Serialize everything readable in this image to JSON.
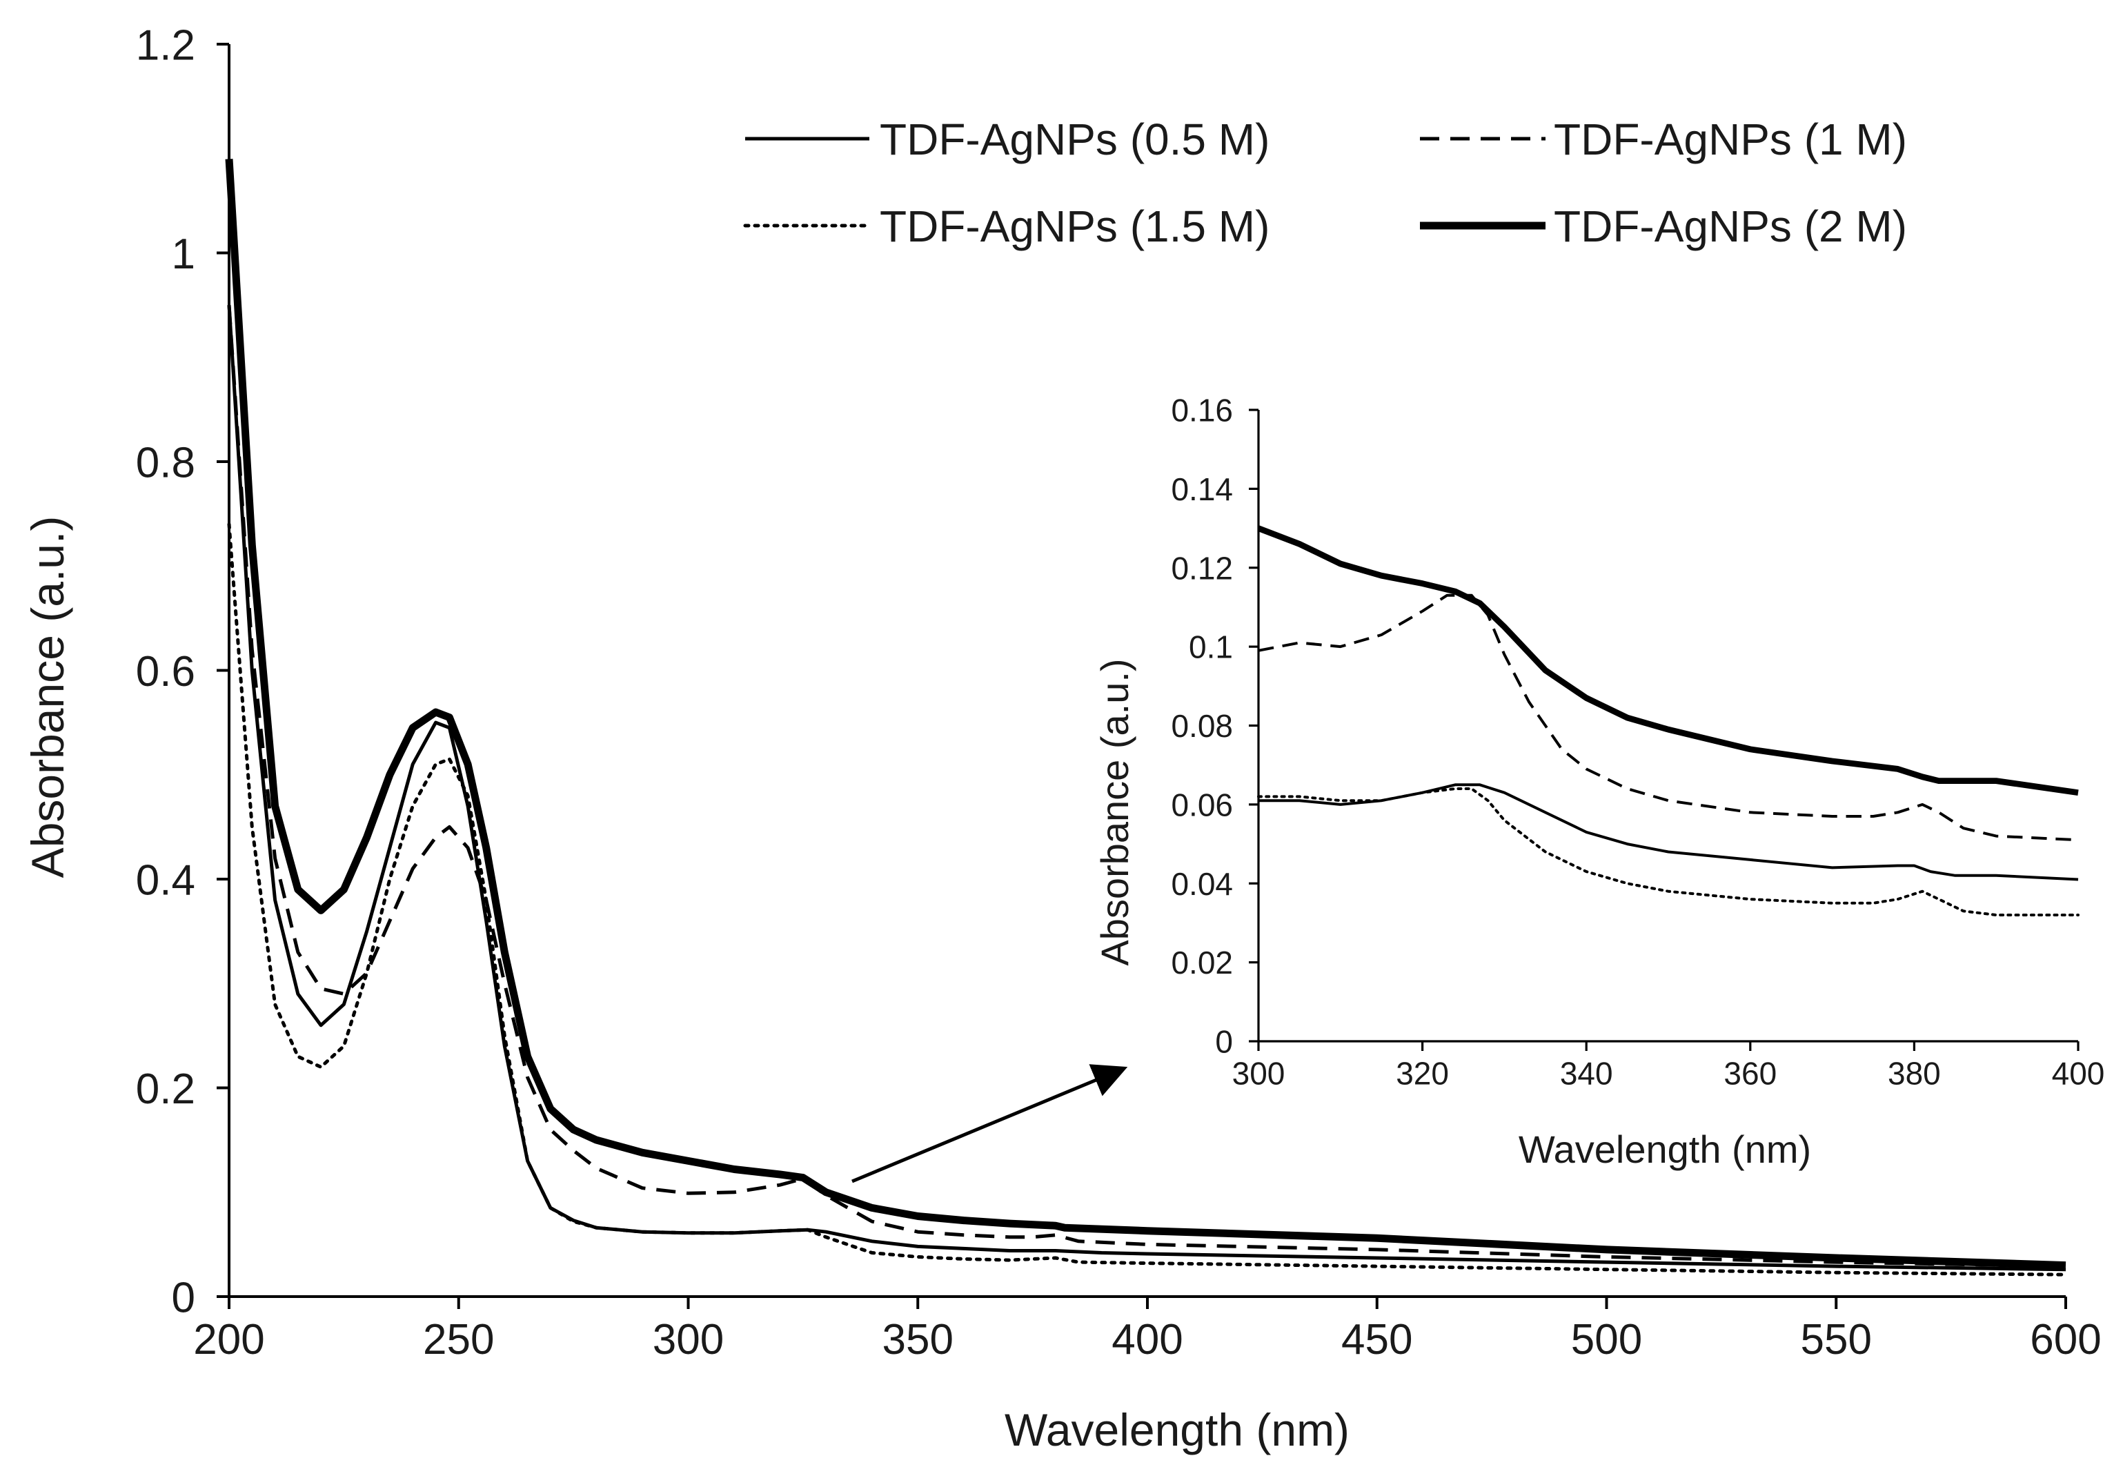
{
  "chart_data": [
    {
      "type": "line",
      "xlabel": "Wavelength (nm)",
      "ylabel": "Absorbance (a.u.)",
      "xlim": [
        200,
        600
      ],
      "ylim": [
        0,
        1.2
      ],
      "xticks": [
        200,
        250,
        300,
        350,
        400,
        450,
        500,
        550,
        600
      ],
      "yticks": [
        0,
        0.2,
        0.4,
        0.6,
        0.8,
        1,
        1.2
      ],
      "ytick_labels": [
        "0",
        "0.2",
        "0.4",
        "0.6",
        "0.8",
        "1",
        "1.2"
      ],
      "grid": false,
      "legend_position": "top-right",
      "series": [
        {
          "name": "TDF-AgNPs (0.5 M)",
          "style": "solid",
          "x": [
            200,
            205,
            210,
            215,
            220,
            225,
            230,
            235,
            240,
            245,
            248,
            252,
            256,
            260,
            265,
            270,
            275,
            280,
            290,
            300,
            310,
            320,
            326,
            330,
            340,
            350,
            360,
            370,
            380,
            390,
            400,
            450,
            500,
            550,
            600
          ],
          "y": [
            0.95,
            0.6,
            0.38,
            0.29,
            0.26,
            0.28,
            0.35,
            0.43,
            0.51,
            0.55,
            0.545,
            0.47,
            0.36,
            0.24,
            0.13,
            0.085,
            0.073,
            0.066,
            0.062,
            0.061,
            0.061,
            0.063,
            0.064,
            0.062,
            0.053,
            0.048,
            0.046,
            0.044,
            0.044,
            0.042,
            0.041,
            0.037,
            0.033,
            0.029,
            0.026
          ]
        },
        {
          "name": "TDF-AgNPs (1 M)",
          "style": "dashed",
          "x": [
            200,
            205,
            210,
            215,
            220,
            225,
            230,
            235,
            240,
            245,
            248,
            252,
            256,
            260,
            265,
            270,
            275,
            280,
            290,
            300,
            310,
            320,
            325,
            330,
            340,
            350,
            360,
            370,
            375,
            380,
            385,
            400,
            450,
            500,
            550,
            600
          ],
          "y": [
            0.95,
            0.62,
            0.42,
            0.33,
            0.295,
            0.29,
            0.31,
            0.36,
            0.41,
            0.44,
            0.45,
            0.43,
            0.38,
            0.3,
            0.21,
            0.16,
            0.14,
            0.123,
            0.104,
            0.099,
            0.1,
            0.107,
            0.113,
            0.097,
            0.072,
            0.062,
            0.059,
            0.057,
            0.057,
            0.059,
            0.053,
            0.05,
            0.045,
            0.038,
            0.033,
            0.029
          ]
        },
        {
          "name": "TDF-AgNPs (1.5 M)",
          "style": "dotted",
          "x": [
            200,
            205,
            210,
            215,
            220,
            225,
            230,
            235,
            240,
            245,
            248,
            252,
            256,
            260,
            265,
            270,
            275,
            280,
            290,
            300,
            310,
            320,
            326,
            330,
            340,
            350,
            360,
            370,
            380,
            385,
            400,
            450,
            500,
            550,
            600
          ],
          "y": [
            0.74,
            0.45,
            0.28,
            0.23,
            0.22,
            0.24,
            0.31,
            0.4,
            0.47,
            0.51,
            0.515,
            0.48,
            0.38,
            0.25,
            0.13,
            0.085,
            0.072,
            0.066,
            0.062,
            0.061,
            0.061,
            0.063,
            0.064,
            0.057,
            0.042,
            0.038,
            0.036,
            0.035,
            0.037,
            0.033,
            0.032,
            0.029,
            0.026,
            0.023,
            0.021
          ]
        },
        {
          "name": "TDF-AgNPs (2 M)",
          "style": "thick",
          "x": [
            200,
            205,
            210,
            215,
            220,
            225,
            230,
            235,
            240,
            245,
            248,
            252,
            256,
            260,
            265,
            270,
            275,
            280,
            290,
            300,
            310,
            320,
            325,
            330,
            340,
            350,
            360,
            370,
            380,
            382,
            400,
            450,
            500,
            550,
            600
          ],
          "y": [
            1.09,
            0.72,
            0.47,
            0.39,
            0.37,
            0.39,
            0.44,
            0.5,
            0.545,
            0.56,
            0.555,
            0.51,
            0.43,
            0.33,
            0.23,
            0.18,
            0.16,
            0.15,
            0.138,
            0.13,
            0.122,
            0.117,
            0.114,
            0.1,
            0.085,
            0.077,
            0.073,
            0.07,
            0.068,
            0.066,
            0.063,
            0.056,
            0.045,
            0.037,
            0.03
          ]
        }
      ]
    },
    {
      "type": "line",
      "role": "inset",
      "xlabel": "Wavelength (nm)",
      "ylabel": "Absorbance (a.u.)",
      "xlim": [
        300,
        400
      ],
      "ylim": [
        0,
        0.16
      ],
      "xticks": [
        300,
        320,
        340,
        360,
        380,
        400
      ],
      "yticks": [
        0,
        0.02,
        0.04,
        0.06,
        0.08,
        0.1,
        0.12,
        0.14,
        0.16
      ],
      "ytick_labels": [
        "0",
        "0.02",
        "0.04",
        "0.06",
        "0.08",
        "0.1",
        "0.12",
        "0.14",
        "0.16"
      ],
      "grid": false,
      "series": [
        {
          "name": "TDF-AgNPs (0.5 M)",
          "style": "solid",
          "x": [
            300,
            305,
            310,
            315,
            320,
            324,
            327,
            330,
            335,
            340,
            345,
            350,
            360,
            370,
            378,
            380,
            382,
            385,
            390,
            400
          ],
          "y": [
            0.061,
            0.061,
            0.06,
            0.061,
            0.063,
            0.065,
            0.065,
            0.063,
            0.058,
            0.053,
            0.05,
            0.048,
            0.046,
            0.044,
            0.0445,
            0.0445,
            0.043,
            0.042,
            0.042,
            0.041
          ]
        },
        {
          "name": "TDF-AgNPs (1 M)",
          "style": "dashed",
          "x": [
            300,
            305,
            310,
            315,
            320,
            323,
            326,
            328,
            330,
            333,
            337,
            340,
            345,
            350,
            360,
            370,
            375,
            378,
            381,
            383,
            386,
            390,
            400
          ],
          "y": [
            0.099,
            0.101,
            0.1,
            0.103,
            0.109,
            0.113,
            0.113,
            0.108,
            0.098,
            0.086,
            0.074,
            0.069,
            0.064,
            0.061,
            0.058,
            0.057,
            0.057,
            0.058,
            0.06,
            0.058,
            0.054,
            0.052,
            0.051
          ]
        },
        {
          "name": "TDF-AgNPs (1.5 M)",
          "style": "dotted",
          "x": [
            300,
            305,
            310,
            315,
            320,
            324,
            326,
            328,
            330,
            335,
            340,
            345,
            350,
            360,
            370,
            375,
            378,
            381,
            383,
            386,
            390,
            400
          ],
          "y": [
            0.062,
            0.062,
            0.061,
            0.061,
            0.063,
            0.064,
            0.064,
            0.061,
            0.056,
            0.048,
            0.043,
            0.04,
            0.038,
            0.036,
            0.035,
            0.035,
            0.036,
            0.038,
            0.036,
            0.033,
            0.032,
            0.032
          ]
        },
        {
          "name": "TDF-AgNPs (2 M)",
          "style": "thick",
          "x": [
            300,
            305,
            310,
            315,
            320,
            324,
            327,
            330,
            335,
            340,
            345,
            350,
            360,
            370,
            378,
            381,
            383,
            386,
            390,
            400
          ],
          "y": [
            0.13,
            0.126,
            0.121,
            0.118,
            0.116,
            0.114,
            0.111,
            0.105,
            0.094,
            0.087,
            0.082,
            0.079,
            0.074,
            0.071,
            0.069,
            0.067,
            0.066,
            0.066,
            0.066,
            0.063
          ]
        }
      ]
    }
  ]
}
